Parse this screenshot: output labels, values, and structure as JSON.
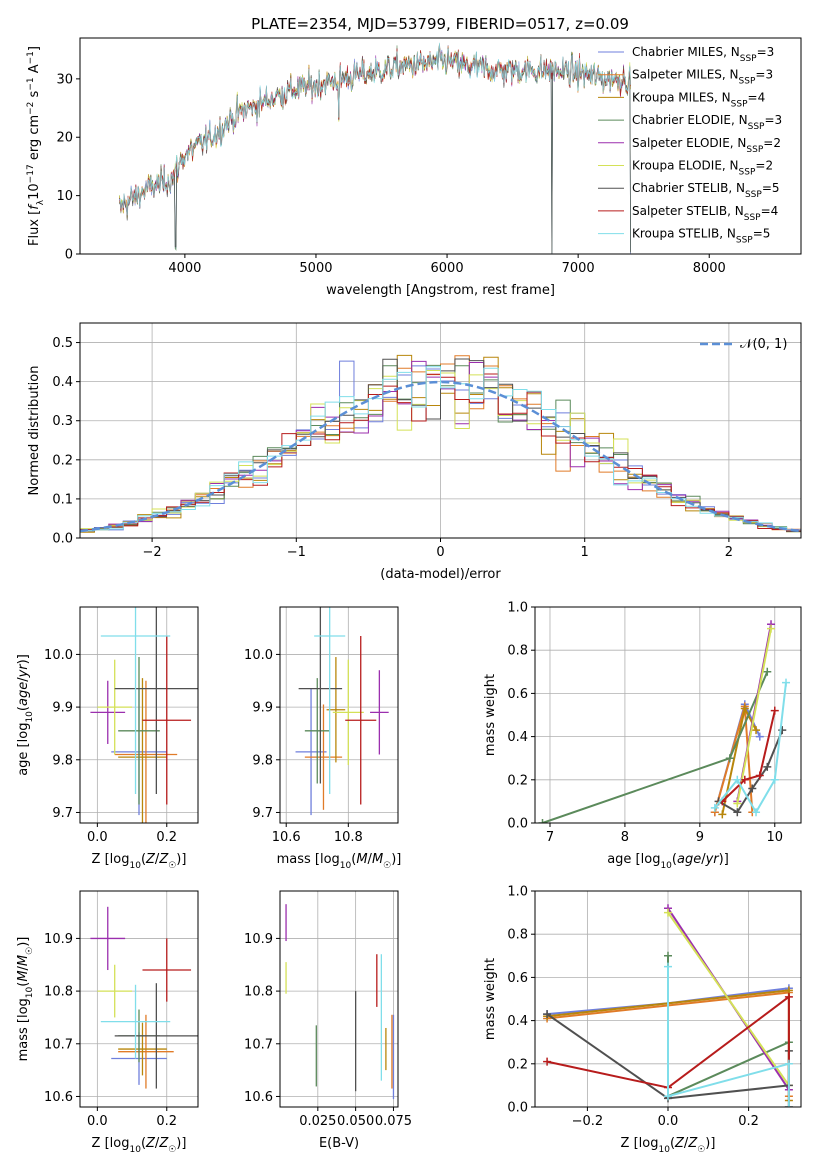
{
  "figure_title": "PLATE=2354, MJD=53799, FIBERID=0517, z=0.09",
  "series_styles": [
    {
      "name": "Chabrier MILES, N_SSP=3",
      "color": "#6f7fdc"
    },
    {
      "name": "Salpeter MILES, N_SSP=3",
      "color": "#e07b28"
    },
    {
      "name": "Kroupa MILES, N_SSP=4",
      "color": "#b8860b"
    },
    {
      "name": "Chabrier ELODIE, N_SSP=3",
      "color": "#5b8a5b"
    },
    {
      "name": "Salpeter ELODIE, N_SSP=2",
      "color": "#9b2fae"
    },
    {
      "name": "Kroupa ELODIE, N_SSP=2",
      "color": "#d4e157"
    },
    {
      "name": "Chabrier STELIB, N_SSP=5",
      "color": "#505050"
    },
    {
      "name": "Salpeter STELIB, N_SSP=4",
      "color": "#b71c1c"
    },
    {
      "name": "Kroupa STELIB, N_SSP=5",
      "color": "#80deea"
    }
  ],
  "chart_data": [
    {
      "id": "spectrum",
      "type": "line",
      "xlabel": "wavelength [Angstrom, rest frame]",
      "ylabel": "Flux [f_λ 10^-17 erg cm^-2 s^-1 A^-1]",
      "xlim": [
        3200,
        8700
      ],
      "ylim": [
        0,
        37
      ],
      "xticks": [
        4000,
        5000,
        6000,
        7000,
        8000
      ],
      "yticks": [
        0,
        10,
        20,
        30
      ],
      "grid": false,
      "legend_position": "top-right",
      "legend": [
        {
          "pre": "Chabrier MILES, N",
          "sub": "SSP",
          "post": "=3"
        },
        {
          "pre": "Salpeter MILES, N",
          "sub": "SSP",
          "post": "=3"
        },
        {
          "pre": "Kroupa MILES, N",
          "sub": "SSP",
          "post": "=4"
        },
        {
          "pre": "Chabrier ELODIE, N",
          "sub": "SSP",
          "post": "=3"
        },
        {
          "pre": "Salpeter ELODIE, N",
          "sub": "SSP",
          "post": "=2"
        },
        {
          "pre": "Kroupa ELODIE, N",
          "sub": "SSP",
          "post": "=2"
        },
        {
          "pre": "Chabrier STELIB, N",
          "sub": "SSP",
          "post": "=5"
        },
        {
          "pre": "Salpeter STELIB, N",
          "sub": "SSP",
          "post": "=4"
        },
        {
          "pre": "Kroupa STELIB, N",
          "sub": "SSP",
          "post": "=5"
        }
      ],
      "continuum": {
        "x": [
          3500,
          3700,
          3900,
          4000,
          4200,
          4400,
          4600,
          4800,
          5000,
          5200,
          5400,
          5600,
          5800,
          6000,
          6200,
          6400,
          6600,
          6800,
          7000,
          7200,
          7400
        ],
        "y": [
          8,
          11,
          13,
          17,
          20,
          24,
          26,
          28,
          29,
          30,
          31,
          32,
          32.5,
          33,
          32,
          31.5,
          31.5,
          31.5,
          31,
          30,
          30
        ]
      },
      "dips": [
        {
          "x": 3930,
          "y": 1
        },
        {
          "x": 5175,
          "y": 23
        },
        {
          "x": 6800,
          "y": 0
        },
        {
          "x": 7400,
          "y": 0
        }
      ]
    },
    {
      "id": "residuals",
      "type": "histogram",
      "xlabel": "(data-model)/error",
      "ylabel": "Normed distribution",
      "xlim": [
        -2.5,
        2.5
      ],
      "ylim": [
        0,
        0.55
      ],
      "xticks": [
        -2,
        -1,
        0,
        1,
        2
      ],
      "xtick_labels": [
        "−2",
        "−1",
        "0",
        "1",
        "2"
      ],
      "yticks": [
        0,
        0.1,
        0.2,
        0.3,
        0.4,
        0.5
      ],
      "ytick_labels": [
        "0.0",
        "0.1",
        "0.2",
        "0.3",
        "0.4",
        "0.5"
      ],
      "grid": true,
      "legend_position": "top-right",
      "legend_label": "𝒩(0, 1)",
      "reference_curve": "normal(0,1)",
      "bin_width": 0.1,
      "bin_start": -2.5
    },
    {
      "id": "age_vs_Z",
      "type": "errorbar",
      "xlabel": "Z [log10(Z/Z☉)]",
      "ylabel": "age [log10(age/yr)]",
      "xlim": [
        -0.05,
        0.29
      ],
      "ylim": [
        9.68,
        10.09
      ],
      "xticks": [
        0.0,
        0.2
      ],
      "xtick_labels": [
        "0.0",
        "0.2"
      ],
      "yticks": [
        9.7,
        9.8,
        9.9,
        10.0
      ],
      "ytick_labels": [
        "9.7",
        "9.8",
        "9.9",
        "10.0"
      ],
      "grid": true,
      "points": [
        {
          "s": 0,
          "x": 0.12,
          "y": 9.815,
          "xerr": 0.08,
          "yerr": 0.12
        },
        {
          "s": 1,
          "x": 0.14,
          "y": 9.81,
          "xerr": 0.09,
          "yerr": 0.14
        },
        {
          "s": 2,
          "x": 0.13,
          "y": 9.805,
          "xerr": 0.07,
          "yerr": 0.15
        },
        {
          "s": 3,
          "x": 0.12,
          "y": 9.855,
          "xerr": 0.06,
          "yerr": 0.14
        },
        {
          "s": 4,
          "x": 0.03,
          "y": 9.89,
          "xerr": 0.05,
          "yerr": 0.06
        },
        {
          "s": 5,
          "x": 0.05,
          "y": 9.9,
          "xerr": 0.05,
          "yerr": 0.09
        },
        {
          "s": 6,
          "x": 0.17,
          "y": 9.935,
          "xerr": 0.12,
          "yerr": 0.2
        },
        {
          "s": 7,
          "x": 0.2,
          "y": 9.875,
          "xerr": 0.07,
          "yerr": 0.16
        },
        {
          "s": 8,
          "x": 0.11,
          "y": 10.035,
          "xerr": 0.1,
          "yerr": 0.3
        }
      ]
    },
    {
      "id": "age_vs_mass",
      "type": "errorbar",
      "xlabel": "mass [log10(M/M☉)]",
      "ylabel": "",
      "xlim": [
        10.58,
        10.96
      ],
      "ylim": [
        9.68,
        10.09
      ],
      "xticks": [
        10.6,
        10.8
      ],
      "xtick_labels": [
        "10.6",
        "10.8"
      ],
      "yticks": [
        9.7,
        9.8,
        9.9,
        10.0
      ],
      "ytick_labels": [
        "9.7",
        "9.8",
        "9.9",
        "10.0"
      ],
      "grid": true,
      "points": [
        {
          "s": 0,
          "x": 10.68,
          "y": 9.815,
          "xerr": 0.05,
          "yerr": 0.12
        },
        {
          "s": 1,
          "x": 10.72,
          "y": 9.805,
          "xerr": 0.06,
          "yerr": 0.1
        },
        {
          "s": 2,
          "x": 10.76,
          "y": 9.895,
          "xerr": 0.03,
          "yerr": 0.1
        },
        {
          "s": 3,
          "x": 10.7,
          "y": 9.855,
          "xerr": 0.04,
          "yerr": 0.1
        },
        {
          "s": 4,
          "x": 10.9,
          "y": 9.89,
          "xerr": 0.03,
          "yerr": 0.08
        },
        {
          "s": 5,
          "x": 10.8,
          "y": 9.89,
          "xerr": 0.05,
          "yerr": 0.1
        },
        {
          "s": 6,
          "x": 10.71,
          "y": 9.935,
          "xerr": 0.07,
          "yerr": 0.18
        },
        {
          "s": 7,
          "x": 10.84,
          "y": 9.875,
          "xerr": 0.05,
          "yerr": 0.16
        },
        {
          "s": 8,
          "x": 10.74,
          "y": 10.035,
          "xerr": 0.05,
          "yerr": 0.3
        }
      ]
    },
    {
      "id": "weight_vs_age",
      "type": "line",
      "xlabel": "age [log10(age/yr)]",
      "ylabel": "mass weight",
      "xlim": [
        6.8,
        10.35
      ],
      "ylim": [
        0,
        1
      ],
      "xticks": [
        7,
        8,
        9,
        10
      ],
      "xtick_labels": [
        "7",
        "8",
        "9",
        "10"
      ],
      "yticks": [
        0,
        0.2,
        0.4,
        0.6,
        0.8,
        1.0
      ],
      "ytick_labels": [
        "0.0",
        "0.2",
        "0.4",
        "0.6",
        "0.8",
        "1.0"
      ],
      "grid": true,
      "series": [
        {
          "s": 0,
          "x": [
            9.2,
            9.6,
            9.8
          ],
          "y": [
            0.05,
            0.55,
            0.4
          ]
        },
        {
          "s": 1,
          "x": [
            9.2,
            9.6,
            9.7
          ],
          "y": [
            0.05,
            0.54,
            0.05
          ]
        },
        {
          "s": 2,
          "x": [
            9.3,
            9.6,
            9.75
          ],
          "y": [
            0.04,
            0.53,
            0.43
          ]
        },
        {
          "s": 3,
          "x": [
            6.9,
            9.4,
            9.9
          ],
          "y": [
            0.0,
            0.3,
            0.7
          ]
        },
        {
          "s": 4,
          "x": [
            9.5,
            9.95
          ],
          "y": [
            0.1,
            0.92
          ]
        },
        {
          "s": 5,
          "x": [
            9.5,
            9.95
          ],
          "y": [
            0.09,
            0.9
          ]
        },
        {
          "s": 6,
          "x": [
            9.25,
            9.5,
            9.7,
            9.9,
            10.1
          ],
          "y": [
            0.1,
            0.05,
            0.16,
            0.26,
            0.43
          ]
        },
        {
          "s": 7,
          "x": [
            9.3,
            9.6,
            9.8,
            10.0
          ],
          "y": [
            0.1,
            0.2,
            0.22,
            0.52
          ]
        },
        {
          "s": 8,
          "x": [
            9.2,
            9.5,
            9.75,
            10.0,
            10.15
          ],
          "y": [
            0.07,
            0.2,
            0.05,
            0.2,
            0.65
          ]
        }
      ]
    },
    {
      "id": "mass_vs_Z",
      "type": "errorbar",
      "xlabel": "Z [log10(Z/Z☉)]",
      "ylabel": "mass [log10(M/M☉)]",
      "xlim": [
        -0.05,
        0.29
      ],
      "ylim": [
        10.58,
        10.99
      ],
      "xticks": [
        0.0,
        0.2
      ],
      "xtick_labels": [
        "0.0",
        "0.2"
      ],
      "yticks": [
        10.6,
        10.7,
        10.8,
        10.9
      ],
      "ytick_labels": [
        "10.6",
        "10.7",
        "10.8",
        "10.9"
      ],
      "grid": true,
      "points": [
        {
          "s": 0,
          "x": 0.12,
          "y": 10.672,
          "xerr": 0.08,
          "yerr": 0.05
        },
        {
          "s": 1,
          "x": 0.14,
          "y": 10.685,
          "xerr": 0.08,
          "yerr": 0.07
        },
        {
          "s": 2,
          "x": 0.13,
          "y": 10.69,
          "xerr": 0.07,
          "yerr": 0.05
        },
        {
          "s": 3,
          "x": 0.12,
          "y": 10.715,
          "xerr": 0.06,
          "yerr": 0.05
        },
        {
          "s": 4,
          "x": 0.03,
          "y": 10.9,
          "xerr": 0.05,
          "yerr": 0.06
        },
        {
          "s": 5,
          "x": 0.05,
          "y": 10.8,
          "xerr": 0.05,
          "yerr": 0.05
        },
        {
          "s": 6,
          "x": 0.17,
          "y": 10.715,
          "xerr": 0.12,
          "yerr": 0.1
        },
        {
          "s": 7,
          "x": 0.2,
          "y": 10.84,
          "xerr": 0.07,
          "yerr": 0.06
        },
        {
          "s": 8,
          "x": 0.11,
          "y": 10.742,
          "xerr": 0.1,
          "yerr": 0.07
        }
      ]
    },
    {
      "id": "mass_vs_ebv",
      "type": "errorbar",
      "xlabel": "E(B-V)",
      "ylabel": "",
      "xlim": [
        0.0,
        0.078
      ],
      "ylim": [
        10.58,
        10.99
      ],
      "xticks": [
        0.025,
        0.05,
        0.075
      ],
      "xtick_labels": [
        "0.025",
        "0.050",
        "0.075"
      ],
      "yticks": [
        10.6,
        10.7,
        10.8,
        10.9
      ],
      "ytick_labels": [
        "10.6",
        "10.7",
        "10.8",
        "10.9"
      ],
      "grid": true,
      "points": [
        {
          "s": 0,
          "x": 0.075,
          "y": 10.675,
          "xerr": 0,
          "yerr": 0.08
        },
        {
          "s": 1,
          "x": 0.074,
          "y": 10.685,
          "xerr": 0,
          "yerr": 0.07
        },
        {
          "s": 2,
          "x": 0.07,
          "y": 10.69,
          "xerr": 0,
          "yerr": 0.04
        },
        {
          "s": 3,
          "x": 0.024,
          "y": 10.677,
          "xerr": 0,
          "yerr": 0.058
        },
        {
          "s": 4,
          "x": 0.004,
          "y": 10.93,
          "xerr": 0,
          "yerr": 0.035
        },
        {
          "s": 5,
          "x": 0.004,
          "y": 10.825,
          "xerr": 0,
          "yerr": 0.03
        },
        {
          "s": 6,
          "x": 0.05,
          "y": 10.705,
          "xerr": 0,
          "yerr": 0.095
        },
        {
          "s": 7,
          "x": 0.064,
          "y": 10.82,
          "xerr": 0,
          "yerr": 0.05
        },
        {
          "s": 8,
          "x": 0.067,
          "y": 10.75,
          "xerr": 0,
          "yerr": 0.12
        }
      ]
    },
    {
      "id": "weight_vs_Z",
      "type": "line",
      "xlabel": "Z [log10(Z/Z☉)]",
      "ylabel": "mass weight",
      "xlim": [
        -0.33,
        0.33
      ],
      "ylim": [
        0,
        1
      ],
      "xticks": [
        -0.2,
        0.0,
        0.2
      ],
      "xtick_labels": [
        "−0.2",
        "0.0",
        "0.2"
      ],
      "yticks": [
        0,
        0.2,
        0.4,
        0.6,
        0.8,
        1.0
      ],
      "ytick_labels": [
        "0.0",
        "0.2",
        "0.4",
        "0.6",
        "0.8",
        "1.0"
      ],
      "grid": true,
      "series": [
        {
          "s": 0,
          "x": [
            -0.3,
            0.0,
            0.3
          ],
          "y": [
            0.43,
            0.48,
            0.55
          ]
        },
        {
          "s": 1,
          "x": [
            -0.3,
            0.3,
            0.3
          ],
          "y": [
            0.41,
            0.53,
            0.05
          ]
        },
        {
          "s": 2,
          "x": [
            -0.3,
            0.3,
            0.3
          ],
          "y": [
            0.42,
            0.54,
            0.03
          ]
        },
        {
          "s": 3,
          "x": [
            0.0,
            0.0,
            0.3,
            0.3
          ],
          "y": [
            0.7,
            0.05,
            0.3,
            0.0
          ]
        },
        {
          "s": 4,
          "x": [
            0.0,
            0.3
          ],
          "y": [
            0.92,
            0.08
          ]
        },
        {
          "s": 5,
          "x": [
            0.0,
            0.3
          ],
          "y": [
            0.9,
            0.1
          ]
        },
        {
          "s": 6,
          "x": [
            -0.3,
            0.0,
            0.3,
            0.3
          ],
          "y": [
            0.43,
            0.04,
            0.1,
            0.26
          ]
        },
        {
          "s": 7,
          "x": [
            -0.3,
            0.0,
            0.3,
            0.3
          ],
          "y": [
            0.21,
            0.09,
            0.51,
            0.0
          ]
        },
        {
          "s": 8,
          "x": [
            0.0,
            0.0,
            0.3,
            0.3
          ],
          "y": [
            0.65,
            0.05,
            0.2,
            0.0
          ]
        }
      ]
    }
  ]
}
